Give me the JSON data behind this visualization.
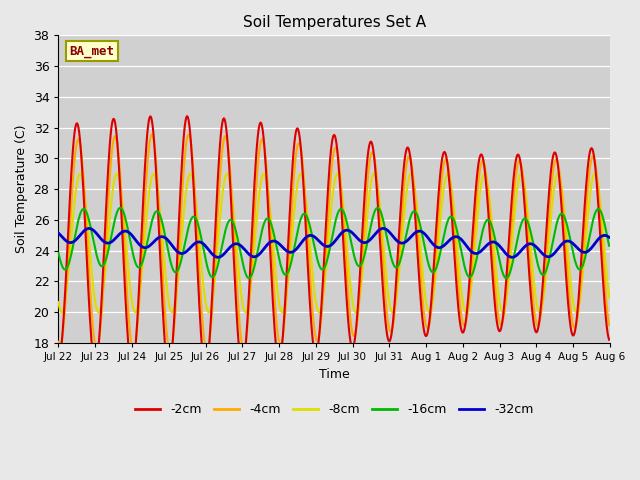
{
  "title": "Soil Temperatures Set A",
  "xlabel": "Time",
  "ylabel": "Soil Temperature (C)",
  "ylim": [
    18,
    38
  ],
  "yticks": [
    18,
    20,
    22,
    24,
    26,
    28,
    30,
    32,
    34,
    36,
    38
  ],
  "background_color": "#e8e8e8",
  "plot_bg_color": "#d0d0d0",
  "legend_label": "BA_met",
  "line_colors": {
    "-2cm": "#dd0000",
    "-4cm": "#ffaa00",
    "-8cm": "#dddd00",
    "-16cm": "#00bb00",
    "-32cm": "#0000cc"
  },
  "line_widths": {
    "-2cm": 1.5,
    "-4cm": 1.5,
    "-8cm": 1.5,
    "-16cm": 1.5,
    "-32cm": 2.0
  },
  "tick_labels": [
    "Jul 22",
    "Jul 23",
    "Jul 24",
    "Jul 25",
    "Jul 26",
    "Jul 27",
    "Jul 28",
    "Jul 29",
    "Jul 30",
    "Jul 31",
    "Aug 1",
    "Aug 2",
    "Aug 3",
    "Aug 4",
    "Aug 5",
    "Aug 6"
  ],
  "n_days": 15,
  "samples_per_day": 48,
  "mean_temp": 24.5,
  "amp_2cm": 7.0,
  "amp_4cm": 6.2,
  "amp_8cm": 4.5,
  "amp_16cm": 1.9,
  "amp_32cm": 0.45,
  "phase_lag_4cm": 0.25,
  "phase_lag_8cm": 0.55,
  "phase_lag_16cm": 1.15,
  "phase_lag_32cm": 2.1
}
